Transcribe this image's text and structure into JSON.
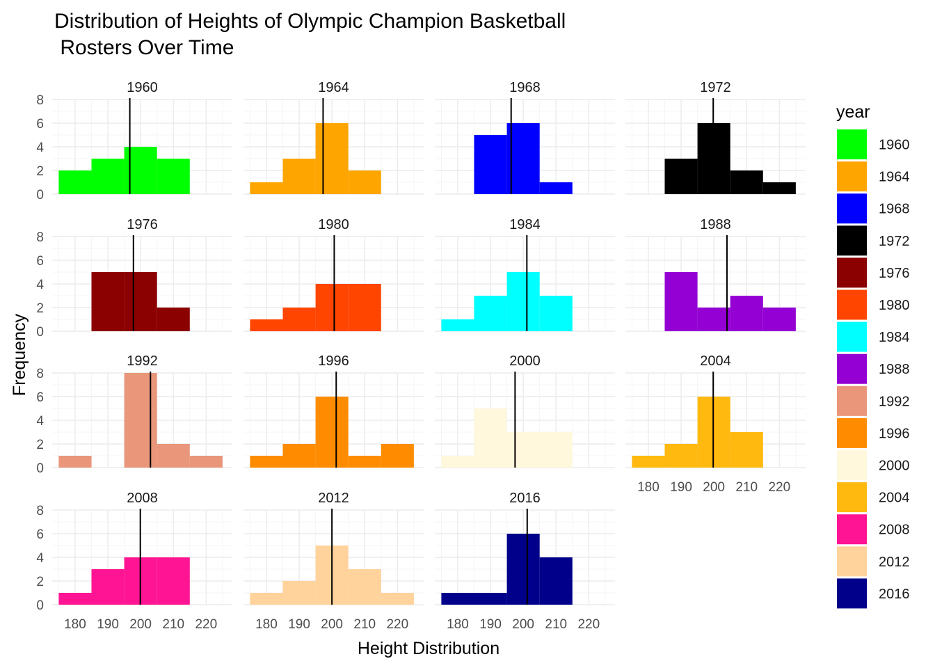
{
  "chart_data": {
    "type": "bar",
    "subtype": "faceted-histogram",
    "title_lines": [
      "Distribution of Heights of Olympic Champion Basketball",
      " Rosters Over Time"
    ],
    "xlabel": "Height Distribution",
    "ylabel": "Frequency",
    "legend_title": "year",
    "legend_position": "right",
    "grid": true,
    "xlim": [
      173,
      228
    ],
    "ylim": [
      0,
      8
    ],
    "x_ticks": [
      180,
      190,
      200,
      210,
      220
    ],
    "y_ticks": [
      0,
      2,
      4,
      6,
      8
    ],
    "bin_edges": [
      175,
      185,
      195,
      205,
      215,
      225
    ],
    "facets": [
      {
        "year": "1960",
        "color": "#00FF00",
        "counts": [
          2,
          3,
          4,
          3,
          0
        ],
        "mean": 196.7
      },
      {
        "year": "1964",
        "color": "#FFA500",
        "counts": [
          1,
          3,
          6,
          2,
          0
        ],
        "mean": 197.3
      },
      {
        "year": "1968",
        "color": "#0000FF",
        "counts": [
          0,
          5,
          6,
          1,
          0
        ],
        "mean": 196.3
      },
      {
        "year": "1972",
        "color": "#000000",
        "counts": [
          0,
          3,
          6,
          2,
          1
        ],
        "mean": 199.8
      },
      {
        "year": "1976",
        "color": "#8B0000",
        "counts": [
          0,
          5,
          5,
          2,
          0
        ],
        "mean": 197.8
      },
      {
        "year": "1980",
        "color": "#FF4500",
        "counts": [
          1,
          2,
          4,
          4,
          0
        ],
        "mean": 200.7
      },
      {
        "year": "1984",
        "color": "#00FFFF",
        "counts": [
          1,
          3,
          5,
          3,
          0
        ],
        "mean": 201.1
      },
      {
        "year": "1988",
        "color": "#9400D3",
        "counts": [
          0,
          5,
          2,
          3,
          2
        ],
        "mean": 204.0
      },
      {
        "year": "1992",
        "color": "#E9967A",
        "counts": [
          1,
          0,
          8,
          2,
          1
        ],
        "mean": 203.0
      },
      {
        "year": "1996",
        "color": "#FF8C00",
        "counts": [
          1,
          2,
          6,
          1,
          2
        ],
        "mean": 201.3
      },
      {
        "year": "2000",
        "color": "#FFF8DC",
        "counts": [
          1,
          5,
          3,
          3,
          0
        ],
        "mean": 197.5
      },
      {
        "year": "2004",
        "color": "#FFB90F",
        "counts": [
          1,
          2,
          6,
          3,
          0
        ],
        "mean": 199.8
      },
      {
        "year": "2008",
        "color": "#FF1493",
        "counts": [
          1,
          3,
          4,
          4,
          0
        ],
        "mean": 199.9
      },
      {
        "year": "2012",
        "color": "#FFD39B",
        "counts": [
          1,
          2,
          5,
          3,
          1
        ],
        "mean": 200.0
      },
      {
        "year": "2016",
        "color": "#00008B",
        "counts": [
          1,
          1,
          6,
          4,
          0
        ],
        "mean": 201.2
      }
    ]
  }
}
